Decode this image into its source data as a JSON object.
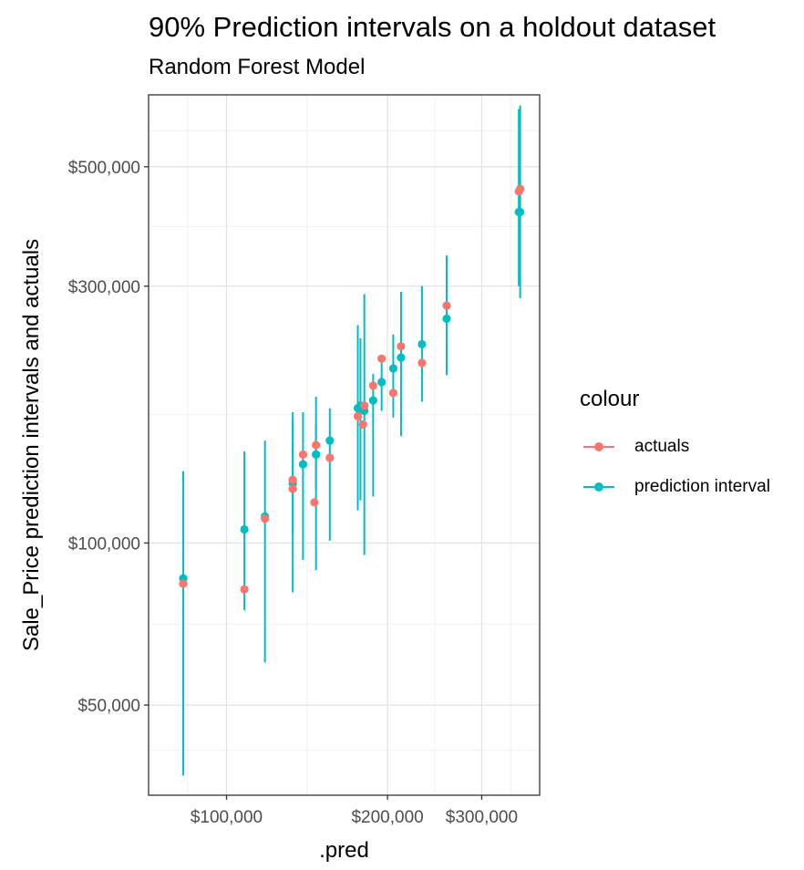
{
  "chart_data": {
    "type": "scatter",
    "title": "90% Prediction intervals on a holdout dataset",
    "subtitle": "Random Forest Model",
    "xlabel": ".pred",
    "ylabel": "Sale_Price prediction intervals and actuals",
    "x_scale": "log10",
    "y_scale": "log10",
    "xlim": [
      71500,
      385000
    ],
    "ylim": [
      34000,
      680000
    ],
    "x_ticks": [
      100000,
      200000,
      300000
    ],
    "x_tick_labels": [
      "$100,000",
      "$200,000",
      "$300,000"
    ],
    "y_ticks": [
      50000,
      100000,
      300000,
      500000
    ],
    "y_tick_labels": [
      "$50,000",
      "$100,000",
      "$300,000",
      "$500,000"
    ],
    "grid": true,
    "legend": {
      "title": "colour",
      "position": "right",
      "entries": [
        {
          "label": "actuals",
          "color": "#F8766D"
        },
        {
          "label": "prediction interval",
          "color": "#00BFC4"
        }
      ]
    },
    "series": [
      {
        "name": "actuals",
        "color": "#F8766D",
        "points": [
          {
            "x": 83000,
            "y": 84000
          },
          {
            "x": 108000,
            "y": 82000
          },
          {
            "x": 118000,
            "y": 111000
          },
          {
            "x": 133000,
            "y": 131000
          },
          {
            "x": 133000,
            "y": 126000
          },
          {
            "x": 139000,
            "y": 146000
          },
          {
            "x": 146000,
            "y": 119000
          },
          {
            "x": 147000,
            "y": 152000
          },
          {
            "x": 156000,
            "y": 144000
          },
          {
            "x": 176000,
            "y": 172000
          },
          {
            "x": 180000,
            "y": 166000
          },
          {
            "x": 181000,
            "y": 180000
          },
          {
            "x": 188000,
            "y": 196000
          },
          {
            "x": 195000,
            "y": 220000
          },
          {
            "x": 205000,
            "y": 190000
          },
          {
            "x": 212000,
            "y": 232000
          },
          {
            "x": 232000,
            "y": 216000
          },
          {
            "x": 258000,
            "y": 276000
          },
          {
            "x": 352000,
            "y": 450000
          },
          {
            "x": 354000,
            "y": 455000
          }
        ]
      },
      {
        "name": "prediction interval",
        "color": "#00BFC4",
        "intervals": [
          {
            "x": 83000,
            "y": 86000,
            "lower": 37000,
            "upper": 136000
          },
          {
            "x": 108000,
            "y": 106000,
            "lower": 75000,
            "upper": 148000
          },
          {
            "x": 118000,
            "y": 112000,
            "lower": 60000,
            "upper": 155000
          },
          {
            "x": 133000,
            "y": 131000,
            "lower": 81000,
            "upper": 175000
          },
          {
            "x": 133000,
            "y": 129000,
            "lower": 104000,
            "upper": 169000
          },
          {
            "x": 139000,
            "y": 140000,
            "lower": 93000,
            "upper": 175000
          },
          {
            "x": 147000,
            "y": 146000,
            "lower": 89000,
            "upper": 187000
          },
          {
            "x": 147000,
            "y": 146000,
            "lower": 125000,
            "upper": 166000
          },
          {
            "x": 156000,
            "y": 155000,
            "lower": 101000,
            "upper": 178000
          },
          {
            "x": 176000,
            "y": 178000,
            "lower": 115000,
            "upper": 254000
          },
          {
            "x": 178000,
            "y": 180000,
            "lower": 120000,
            "upper": 240000
          },
          {
            "x": 181000,
            "y": 176000,
            "lower": 95000,
            "upper": 290000
          },
          {
            "x": 188000,
            "y": 184000,
            "lower": 122000,
            "upper": 206000
          },
          {
            "x": 195000,
            "y": 199000,
            "lower": 176000,
            "upper": 220000
          },
          {
            "x": 205000,
            "y": 211000,
            "lower": 171000,
            "upper": 244000
          },
          {
            "x": 212000,
            "y": 221000,
            "lower": 158000,
            "upper": 293000
          },
          {
            "x": 232000,
            "y": 234000,
            "lower": 183000,
            "upper": 300000
          },
          {
            "x": 258000,
            "y": 261000,
            "lower": 205000,
            "upper": 342000
          },
          {
            "x": 352000,
            "y": 412000,
            "lower": 300000,
            "upper": 640000
          },
          {
            "x": 354000,
            "y": 412000,
            "lower": 285000,
            "upper": 650000
          }
        ]
      }
    ]
  }
}
